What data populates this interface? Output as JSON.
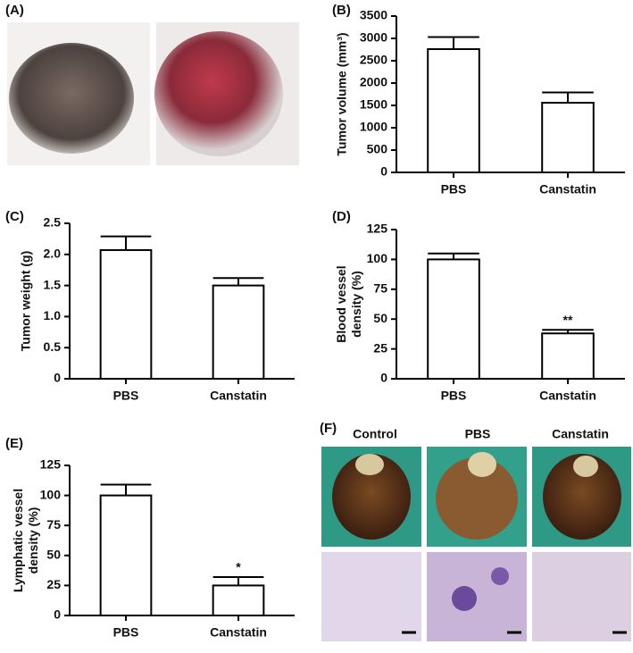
{
  "figure": {
    "panel_a": {
      "label": "(A)"
    },
    "panel_f": {
      "label": "(F)",
      "columns": [
        "Control",
        "PBS",
        "Canstatin"
      ]
    }
  },
  "chart_data": [
    {
      "type": "bar",
      "panel_label": "(B)",
      "ylabel": [
        "Tumor volume (mm³)"
      ],
      "categories": [
        "PBS",
        "Canstatin"
      ],
      "values": [
        2760,
        1560
      ],
      "errors": [
        270,
        230
      ],
      "color": "#ffffff",
      "ylim": [
        0,
        3500
      ],
      "yticks": [
        0,
        500,
        1000,
        1500,
        2000,
        2500,
        3000,
        3500
      ]
    },
    {
      "type": "bar",
      "panel_label": "(C)",
      "ylabel": [
        "Tumor weight (g)"
      ],
      "categories": [
        "PBS",
        "Canstatin"
      ],
      "values": [
        2.07,
        1.5
      ],
      "errors": [
        0.22,
        0.12
      ],
      "color": "#ffffff",
      "ylim": [
        0,
        2.5
      ],
      "yticks": [
        0,
        0.5,
        {
          "value": 1,
          "label": "1.0"
        },
        1.5,
        {
          "value": 2,
          "label": "2.0"
        },
        2.5
      ]
    },
    {
      "type": "bar",
      "panel_label": "(D)",
      "ylabel": [
        "Blood vessel",
        "density (%)"
      ],
      "categories": [
        "PBS",
        "Canstatin"
      ],
      "values": [
        100,
        38
      ],
      "errors": [
        5,
        3
      ],
      "color": "#ffffff",
      "annotations": [
        {
          "text": "**",
          "category": "Canstatin"
        }
      ],
      "ylim": [
        0,
        125
      ],
      "yticks": [
        0,
        25,
        50,
        75,
        100,
        125
      ]
    },
    {
      "type": "bar",
      "panel_label": "(E)",
      "ylabel": [
        "Lymphatic vessel",
        "density (%)"
      ],
      "categories": [
        "PBS",
        "Canstatin"
      ],
      "values": [
        100,
        25
      ],
      "errors": [
        9,
        7
      ],
      "color": "#ffffff",
      "annotations": [
        {
          "text": "*",
          "category": "Canstatin"
        }
      ],
      "ylim": [
        0,
        125
      ],
      "yticks": [
        0,
        25,
        50,
        75,
        100,
        125
      ]
    }
  ]
}
